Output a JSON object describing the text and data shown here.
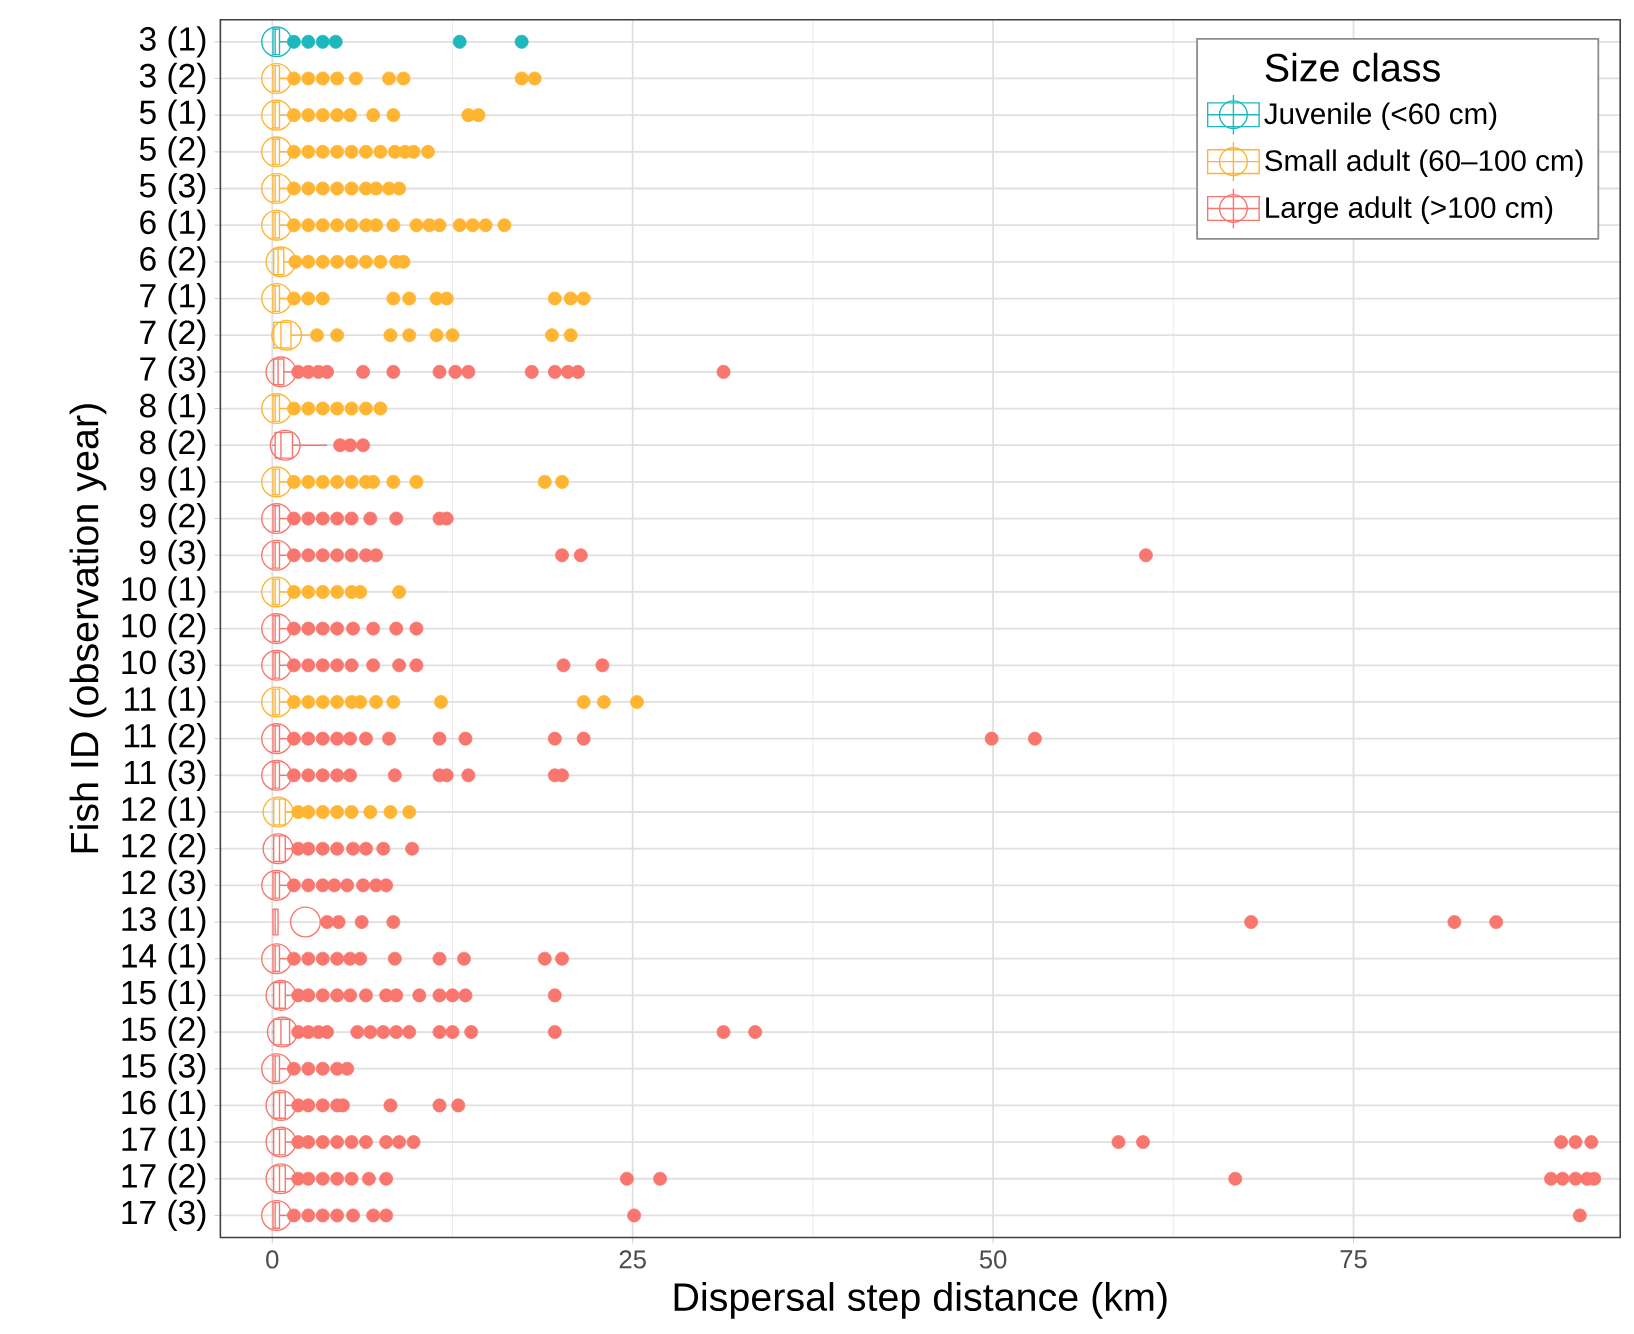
{
  "chart_data": {
    "type": "box",
    "orientation": "horizontal",
    "xlabel": "Dispersal step distance (km)",
    "ylabel": "Fish ID (observation year)",
    "legend_title": "Size class",
    "legend": "top right",
    "grid": true,
    "xlim": [
      -3.6,
      93.5
    ],
    "xticks": [
      0,
      25,
      50,
      75
    ],
    "categories": [
      "3 (1)",
      "3 (2)",
      "5 (1)",
      "5 (2)",
      "5 (3)",
      "6 (1)",
      "6 (2)",
      "7 (1)",
      "7 (2)",
      "7 (3)",
      "8 (1)",
      "8 (2)",
      "9 (1)",
      "9 (2)",
      "9 (3)",
      "10 (1)",
      "10 (2)",
      "10 (3)",
      "11 (1)",
      "11 (2)",
      "11 (3)",
      "12 (1)",
      "12 (2)",
      "12 (3)",
      "13 (1)",
      "14 (1)",
      "15 (1)",
      "15 (2)",
      "15 (3)",
      "16 (1)",
      "17 (1)",
      "17 (2)",
      "17 (3)"
    ],
    "series": [
      {
        "name": "Juvenile (<60 cm)",
        "color": "#1db8be",
        "boxes": [
          {
            "low": 0,
            "q1": 0.05,
            "median": 0.2,
            "q3": 0.5,
            "high": 1.2,
            "mean": 0.3,
            "outliers": [
              1.5,
              2.5,
              3.5,
              4.4,
              13.0,
              17.3
            ]
          },
          null,
          null,
          null,
          null,
          null,
          null,
          null,
          null,
          null,
          null,
          null,
          null,
          null,
          null,
          null,
          null,
          null,
          null,
          null,
          null,
          null,
          null,
          null,
          null,
          null,
          null,
          null,
          null,
          null,
          null,
          null,
          null
        ]
      },
      {
        "name": "Small adult (60–100 cm)",
        "color": "#ffb531",
        "boxes": [
          null,
          {
            "low": 0,
            "q1": 0.05,
            "median": 0.2,
            "q3": 0.5,
            "high": 1.2,
            "mean": 0.3,
            "outliers": [
              1.5,
              2.5,
              3.5,
              4.5,
              5.8,
              8.1,
              9.1,
              17.3,
              18.2
            ]
          },
          {
            "low": 0,
            "q1": 0.05,
            "median": 0.2,
            "q3": 0.5,
            "high": 1.2,
            "mean": 0.3,
            "outliers": [
              1.5,
              2.5,
              3.5,
              4.5,
              5.4,
              7.0,
              8.4,
              13.6,
              14.3
            ]
          },
          {
            "low": 0,
            "q1": 0.05,
            "median": 0.2,
            "q3": 0.5,
            "high": 1.2,
            "mean": 0.3,
            "outliers": [
              1.5,
              2.5,
              3.5,
              4.5,
              5.5,
              6.5,
              7.5,
              8.5,
              9.2,
              9.8,
              10.8
            ]
          },
          {
            "low": 0,
            "q1": 0.05,
            "median": 0.2,
            "q3": 0.5,
            "high": 1.2,
            "mean": 0.3,
            "outliers": [
              1.5,
              2.5,
              3.5,
              4.5,
              5.5,
              6.5,
              7.2,
              8.1,
              8.8
            ]
          },
          {
            "low": 0,
            "q1": 0.05,
            "median": 0.2,
            "q3": 0.5,
            "high": 1.2,
            "mean": 0.3,
            "outliers": [
              1.5,
              2.5,
              3.5,
              4.5,
              5.5,
              6.5,
              7.2,
              8.4,
              10.0,
              10.9,
              11.6,
              13.0,
              13.9,
              14.8,
              16.1
            ]
          },
          {
            "low": 0,
            "q1": 0.1,
            "median": 0.4,
            "q3": 0.8,
            "high": 1.3,
            "mean": 0.6,
            "outliers": [
              1.6,
              2.5,
              3.5,
              4.5,
              5.5,
              6.5,
              7.5,
              8.6,
              9.1
            ]
          },
          {
            "low": 0,
            "q1": 0.05,
            "median": 0.2,
            "q3": 0.5,
            "high": 1.2,
            "mean": 0.3,
            "outliers": [
              1.5,
              2.5,
              3.5,
              8.4,
              9.5,
              11.4,
              12.1,
              19.6,
              20.7,
              21.6
            ]
          },
          {
            "low": 0,
            "q1": 0.1,
            "median": 0.6,
            "q3": 1.3,
            "high": 2.6,
            "mean": 1.0,
            "outliers": [
              3.1,
              4.5,
              8.2,
              9.5,
              11.4,
              12.5,
              19.4,
              20.7
            ]
          },
          null,
          {
            "low": 0,
            "q1": 0.05,
            "median": 0.2,
            "q3": 0.5,
            "high": 1.2,
            "mean": 0.3,
            "outliers": [
              1.5,
              2.5,
              3.5,
              4.5,
              5.5,
              6.5,
              7.5
            ]
          },
          null,
          {
            "low": 0,
            "q1": 0.05,
            "median": 0.2,
            "q3": 0.5,
            "high": 1.2,
            "mean": 0.3,
            "outliers": [
              1.5,
              2.5,
              3.5,
              4.5,
              5.5,
              6.5,
              7.0,
              8.4,
              10.0,
              18.9,
              20.1
            ]
          },
          null,
          null,
          {
            "low": 0,
            "q1": 0.05,
            "median": 0.2,
            "q3": 0.5,
            "high": 1.2,
            "mean": 0.3,
            "outliers": [
              1.5,
              2.5,
              3.5,
              4.5,
              5.5,
              6.1,
              8.8
            ]
          },
          null,
          null,
          {
            "low": 0,
            "q1": 0.05,
            "median": 0.2,
            "q3": 0.5,
            "high": 1.2,
            "mean": 0.3,
            "outliers": [
              1.5,
              2.5,
              3.5,
              4.5,
              5.5,
              6.1,
              7.2,
              8.4,
              11.7,
              21.6,
              23.0,
              25.3
            ]
          },
          null,
          null,
          {
            "low": 0,
            "q1": 0.1,
            "median": 0.5,
            "q3": 0.9,
            "high": 1.4,
            "mean": 0.4,
            "outliers": [
              1.8,
              2.5,
              3.5,
              4.5,
              5.5,
              6.8,
              8.2,
              9.5
            ]
          },
          null,
          null,
          null,
          null,
          null,
          null,
          null,
          null,
          null,
          null,
          null
        ]
      },
      {
        "name": "Large adult (>100 cm)",
        "color": "#f8766d",
        "boxes": [
          null,
          null,
          null,
          null,
          null,
          null,
          null,
          null,
          null,
          {
            "low": 0,
            "q1": 0.1,
            "median": 0.4,
            "q3": 0.8,
            "high": 1.4,
            "mean": 0.6,
            "outliers": [
              1.8,
              2.5,
              3.2,
              3.8,
              6.3,
              8.4,
              11.6,
              12.7,
              13.6,
              18.0,
              19.6,
              20.5,
              21.2,
              31.3
            ]
          },
          null,
          {
            "low": 0,
            "q1": 0.2,
            "median": 0.6,
            "q3": 1.4,
            "high": 3.8,
            "mean": 0.9,
            "outliers": [
              4.7,
              5.4,
              6.3
            ]
          },
          null,
          {
            "low": 0,
            "q1": 0.05,
            "median": 0.2,
            "q3": 0.5,
            "high": 1.2,
            "mean": 0.3,
            "outliers": [
              1.5,
              2.5,
              3.5,
              4.5,
              5.5,
              6.8,
              8.6,
              11.6,
              12.1
            ]
          },
          {
            "low": 0,
            "q1": 0.05,
            "median": 0.2,
            "q3": 0.5,
            "high": 1.2,
            "mean": 0.3,
            "outliers": [
              1.5,
              2.5,
              3.5,
              4.5,
              5.5,
              6.5,
              7.2,
              20.1,
              21.4,
              60.6
            ]
          },
          null,
          {
            "low": 0,
            "q1": 0.05,
            "median": 0.2,
            "q3": 0.5,
            "high": 1.2,
            "mean": 0.3,
            "outliers": [
              1.5,
              2.5,
              3.5,
              4.5,
              5.6,
              7.0,
              8.6,
              10.0
            ]
          },
          {
            "low": 0,
            "q1": 0.05,
            "median": 0.2,
            "q3": 0.5,
            "high": 1.2,
            "mean": 0.3,
            "outliers": [
              1.5,
              2.5,
              3.5,
              4.5,
              5.5,
              7.0,
              8.8,
              10.0,
              20.2,
              22.9
            ]
          },
          null,
          {
            "low": 0,
            "q1": 0.05,
            "median": 0.2,
            "q3": 0.5,
            "high": 1.2,
            "mean": 0.3,
            "outliers": [
              1.5,
              2.5,
              3.5,
              4.5,
              5.4,
              6.5,
              8.1,
              11.6,
              13.4,
              19.6,
              21.6,
              49.9,
              52.9
            ]
          },
          {
            "low": 0,
            "q1": 0.05,
            "median": 0.2,
            "q3": 0.5,
            "high": 1.2,
            "mean": 0.3,
            "outliers": [
              1.5,
              2.5,
              3.5,
              4.5,
              5.4,
              8.5,
              11.6,
              12.1,
              13.6,
              19.6,
              20.1
            ]
          },
          null,
          {
            "low": 0,
            "q1": 0.1,
            "median": 0.5,
            "q3": 0.9,
            "high": 1.4,
            "mean": 0.4,
            "outliers": [
              1.8,
              2.5,
              3.5,
              4.5,
              5.6,
              6.5,
              7.7,
              9.7
            ]
          },
          {
            "low": 0,
            "q1": 0.05,
            "median": 0.2,
            "q3": 0.5,
            "high": 1.2,
            "mean": 0.3,
            "outliers": [
              1.5,
              2.5,
              3.5,
              4.3,
              5.2,
              6.3,
              7.2,
              7.9
            ]
          },
          {
            "low": 0,
            "q1": 0.05,
            "median": 0.2,
            "q3": 0.4,
            "high": 0.4,
            "mean": 2.3,
            "outliers": [
              3.8,
              4.6,
              6.2,
              8.4,
              67.9,
              82.0,
              84.9
            ]
          },
          {
            "low": 0,
            "q1": 0.05,
            "median": 0.2,
            "q3": 0.5,
            "high": 1.2,
            "mean": 0.3,
            "outliers": [
              1.5,
              2.5,
              3.5,
              4.5,
              5.4,
              6.1,
              8.5,
              11.6,
              13.3,
              18.9,
              20.1
            ]
          },
          {
            "low": 0,
            "q1": 0.1,
            "median": 0.5,
            "q3": 0.9,
            "high": 1.4,
            "mean": 0.6,
            "outliers": [
              1.8,
              2.5,
              3.5,
              4.5,
              5.4,
              6.5,
              7.9,
              8.6,
              10.2,
              11.6,
              12.5,
              13.4,
              19.6
            ]
          },
          {
            "low": 0,
            "q1": 0.1,
            "median": 0.6,
            "q3": 1.2,
            "high": 1.2,
            "mean": 0.7,
            "outliers": [
              1.8,
              2.5,
              3.2,
              3.8,
              5.9,
              6.8,
              7.7,
              8.6,
              9.5,
              11.6,
              12.5,
              13.8,
              19.6,
              31.3,
              33.5
            ]
          },
          {
            "low": 0,
            "q1": 0.05,
            "median": 0.2,
            "q3": 0.5,
            "high": 1.2,
            "mean": 0.3,
            "outliers": [
              1.5,
              2.5,
              3.5,
              4.5,
              5.2
            ]
          },
          {
            "low": 0,
            "q1": 0.1,
            "median": 0.5,
            "q3": 0.9,
            "high": 1.4,
            "mean": 0.6,
            "outliers": [
              1.8,
              2.5,
              3.5,
              4.5,
              4.9,
              8.2,
              11.6,
              12.9
            ]
          },
          {
            "low": 0,
            "q1": 0.1,
            "median": 0.5,
            "q3": 0.9,
            "high": 1.4,
            "mean": 0.6,
            "outliers": [
              1.8,
              2.5,
              3.5,
              4.5,
              5.5,
              6.5,
              7.9,
              8.8,
              9.8,
              58.7,
              60.4,
              89.4,
              90.4,
              91.5
            ]
          },
          {
            "low": 0,
            "q1": 0.1,
            "median": 0.5,
            "q3": 0.9,
            "high": 1.4,
            "mean": 0.6,
            "outliers": [
              1.8,
              2.5,
              3.5,
              4.5,
              5.5,
              6.7,
              7.9,
              24.6,
              26.9,
              66.8,
              88.7,
              89.5,
              90.4,
              91.2,
              91.7
            ]
          },
          {
            "low": 0,
            "q1": 0.05,
            "median": 0.2,
            "q3": 0.5,
            "high": 1.2,
            "mean": 0.3,
            "outliers": [
              1.5,
              2.5,
              3.5,
              4.5,
              5.6,
              7.0,
              7.9,
              25.1,
              90.7
            ]
          }
        ]
      }
    ]
  }
}
